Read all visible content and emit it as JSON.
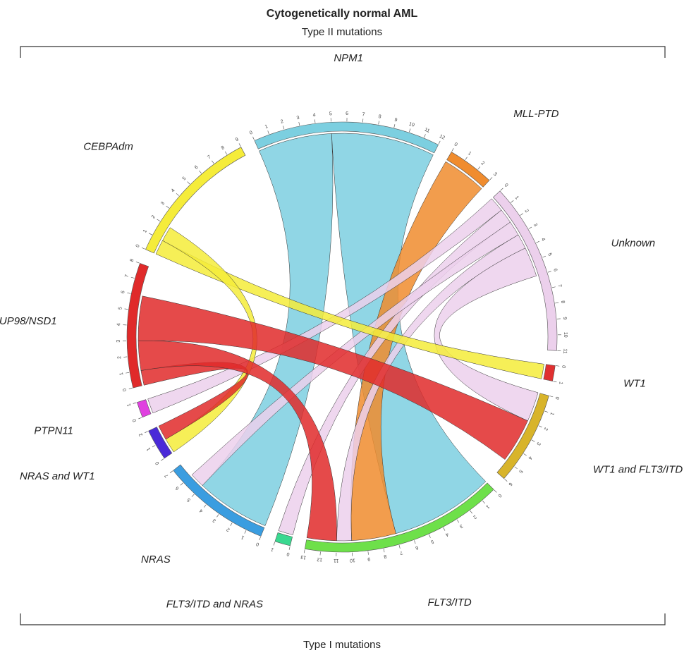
{
  "chart_data": {
    "type": "chord",
    "title": "Cytogenetically normal AML",
    "subtitle": "Type II mutations",
    "bottom_label": "Type I mutations",
    "segments": [
      {
        "name": "NPM1",
        "size": 12,
        "color": "#7ccfe0",
        "ticks": [
          0,
          1,
          2,
          3,
          4,
          5,
          6,
          7,
          8,
          9,
          10,
          11,
          12
        ]
      },
      {
        "name": "MLL-PTD",
        "size": 3,
        "color": "#f08c2e",
        "ticks": [
          0,
          1,
          2,
          3
        ]
      },
      {
        "name": "Unknown",
        "size": 11,
        "color": "#ecd0ec",
        "ticks": [
          0,
          1,
          2,
          3,
          4,
          5,
          6,
          7,
          8,
          9,
          10,
          11
        ]
      },
      {
        "name": "WT1",
        "size": 1,
        "color": "#e03030",
        "ticks": [
          0,
          1
        ]
      },
      {
        "name": "WT1 and FLT3/ITD",
        "size": 6,
        "color": "#d8b42a",
        "ticks": [
          0,
          1,
          2,
          3,
          4,
          5,
          6
        ]
      },
      {
        "name": "FLT3/ITD",
        "size": 13,
        "color": "#6ee04a",
        "ticks": [
          0,
          1,
          2,
          3,
          4,
          5,
          6,
          7,
          8,
          9,
          10,
          11,
          12,
          13
        ]
      },
      {
        "name": "FLT3/ITD and NRAS",
        "size": 1,
        "color": "#3ad890",
        "ticks": [
          0,
          1
        ]
      },
      {
        "name": "NRAS",
        "size": 7,
        "color": "#3a9de0",
        "ticks": [
          0,
          1,
          2,
          3,
          4,
          5,
          6,
          7
        ]
      },
      {
        "name": "NRAS and WT1",
        "size": 2,
        "color": "#4a2ad8",
        "ticks": [
          0,
          1,
          2
        ]
      },
      {
        "name": "PTPN11",
        "size": 1,
        "color": "#e040e0",
        "ticks": [
          0,
          1
        ]
      },
      {
        "name": "NUP98/NSD1",
        "size": 8,
        "color": "#e02a2a",
        "ticks": [
          0,
          1,
          2,
          3,
          4,
          5,
          6,
          7,
          8
        ]
      },
      {
        "name": "CEBPAdm",
        "size": 9,
        "color": "#f5ec3a",
        "ticks": [
          0,
          1,
          2,
          3,
          4,
          5,
          6,
          7,
          8,
          9
        ]
      }
    ],
    "links": [
      {
        "source": "NPM1",
        "target": "NRAS",
        "value": 5
      },
      {
        "source": "NPM1",
        "target": "FLT3/ITD",
        "value": 7
      },
      {
        "source": "MLL-PTD",
        "target": "FLT3/ITD",
        "value": 3
      },
      {
        "source": "Unknown",
        "target": "PTPN11",
        "value": 1
      },
      {
        "source": "Unknown",
        "target": "FLT3/ITD and NRAS",
        "value": 1
      },
      {
        "source": "Unknown",
        "target": "NRAS",
        "value": 1
      },
      {
        "source": "Unknown",
        "target": "FLT3/ITD",
        "value": 1
      },
      {
        "source": "Unknown",
        "target": "WT1 and FLT3/ITD",
        "value": 2
      },
      {
        "source": "CEBPAdm",
        "target": "WT1",
        "value": 1
      },
      {
        "source": "CEBPAdm",
        "target": "NRAS and WT1",
        "value": 1
      },
      {
        "source": "NUP98/NSD1",
        "target": "NRAS and WT1",
        "value": 1
      },
      {
        "source": "NUP98/NSD1",
        "target": "FLT3/ITD",
        "value": 2
      },
      {
        "source": "NUP98/NSD1",
        "target": "WT1 and FLT3/ITD",
        "value": 3
      }
    ]
  }
}
